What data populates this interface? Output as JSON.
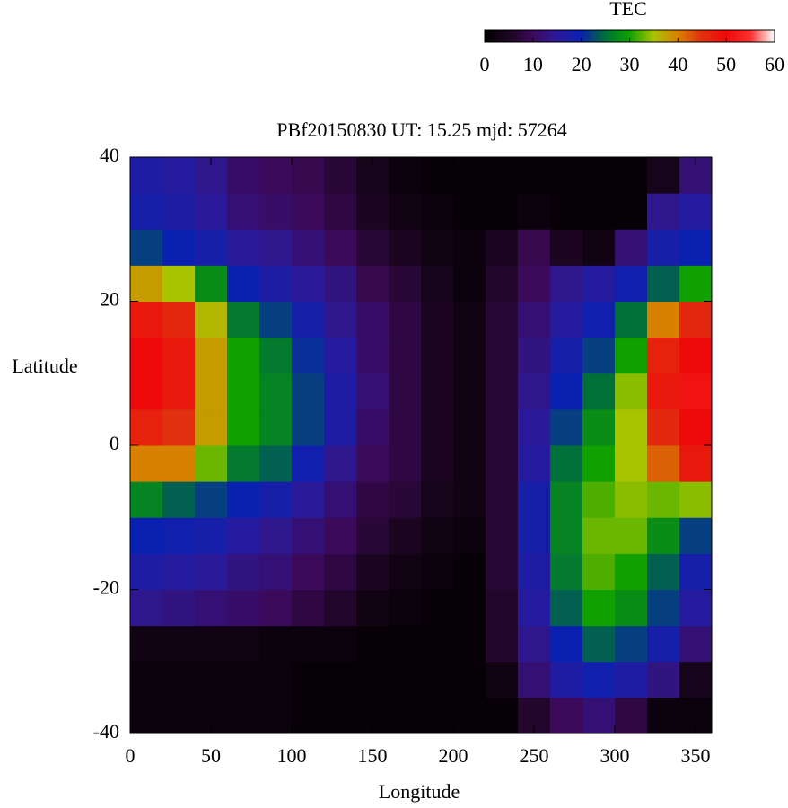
{
  "chart_data": {
    "type": "heatmap",
    "title": "PBf20150830  UT: 15.25  mjd: 57264",
    "x_label": "Longitude",
    "y_label": "Latitude",
    "colorbar_label": "TEC",
    "xbins": [
      0,
      20,
      40,
      60,
      80,
      100,
      120,
      140,
      160,
      180,
      200,
      220,
      240,
      260,
      280,
      300,
      320,
      340,
      360
    ],
    "ybins": [
      -40,
      -35,
      -30,
      -25,
      -20,
      -15,
      -10,
      -5,
      0,
      5,
      10,
      15,
      20,
      25,
      30,
      35,
      40
    ],
    "values": [
      [
        2,
        2,
        3,
        14,
        17,
        20,
        27,
        40,
        47,
        50,
        50,
        48,
        38,
        22,
        18,
        17
      ],
      [
        2,
        2,
        3,
        13,
        16,
        19,
        24,
        40,
        45,
        48,
        48,
        46,
        35,
        20,
        17,
        16
      ],
      [
        2,
        2,
        3,
        12,
        15,
        18,
        22,
        33,
        38,
        38,
        38,
        36,
        28,
        18,
        15,
        14
      ],
      [
        2,
        2,
        3,
        11,
        13,
        16,
        20,
        26,
        30,
        30,
        30,
        26,
        20,
        15,
        12,
        11
      ],
      [
        2,
        2,
        2,
        10,
        12,
        14,
        18,
        24,
        27,
        27,
        26,
        22,
        17,
        14,
        11,
        10
      ],
      [
        1,
        1,
        2,
        8,
        10,
        12,
        15,
        19,
        22,
        22,
        21,
        18,
        15,
        12,
        10,
        9
      ],
      [
        1,
        1,
        2,
        6,
        8,
        10,
        12,
        14,
        17,
        17,
        16,
        14,
        13,
        10,
        8,
        7
      ],
      [
        1,
        1,
        1,
        3,
        5,
        7,
        8,
        10,
        11,
        12,
        11,
        11,
        9,
        7,
        5,
        4
      ],
      [
        1,
        1,
        1,
        2,
        3,
        5,
        7,
        8,
        8,
        8,
        8,
        8,
        7,
        5,
        3,
        2
      ],
      [
        1,
        1,
        1,
        1,
        2,
        3,
        4,
        5,
        5,
        5,
        5,
        5,
        4,
        3,
        2,
        1
      ],
      [
        1,
        1,
        1,
        1,
        1,
        2,
        3,
        3,
        3,
        3,
        3,
        3,
        2,
        2,
        1,
        1
      ],
      [
        1,
        3,
        6,
        6,
        7,
        7,
        7,
        7,
        7,
        7,
        7,
        7,
        6,
        5,
        1,
        1
      ],
      [
        6,
        12,
        14,
        16,
        17,
        18,
        18,
        16,
        15,
        14,
        13,
        12,
        10,
        9,
        2,
        1
      ],
      [
        10,
        17,
        20,
        24,
        26,
        27,
        27,
        25,
        22,
        20,
        18,
        16,
        14,
        5,
        1,
        1
      ],
      [
        12,
        19,
        24,
        30,
        32,
        33,
        32,
        30,
        28,
        25,
        22,
        19,
        16,
        3,
        1,
        1
      ],
      [
        8,
        17,
        22,
        28,
        30,
        33,
        34,
        35,
        35,
        34,
        30,
        25,
        19,
        12,
        1,
        1
      ],
      [
        2,
        13,
        18,
        22,
        24,
        28,
        33,
        42,
        46,
        48,
        47,
        40,
        24,
        18,
        14,
        4
      ],
      [
        2,
        4,
        12,
        16,
        18,
        22,
        34,
        48,
        50,
        51,
        50,
        46,
        30,
        20,
        16,
        12
      ]
    ],
    "xlim": [
      0,
      360
    ],
    "xticks": [
      0,
      50,
      100,
      150,
      200,
      250,
      300,
      350
    ],
    "ylim": [
      -40,
      40
    ],
    "yticks": [
      -40,
      -20,
      0,
      20,
      40
    ],
    "zlim": [
      0,
      60
    ],
    "zticks": [
      0,
      10,
      20,
      30,
      40,
      50,
      60
    ],
    "colormap": [
      "#000000",
      "#1c0520",
      "#3c0a5a",
      "#2a1a9a",
      "#0a20b0",
      "#007038",
      "#10a000",
      "#a8c400",
      "#d88000",
      "#e03010",
      "#ee0a0a",
      "#ff3030",
      "#ffffff"
    ]
  }
}
